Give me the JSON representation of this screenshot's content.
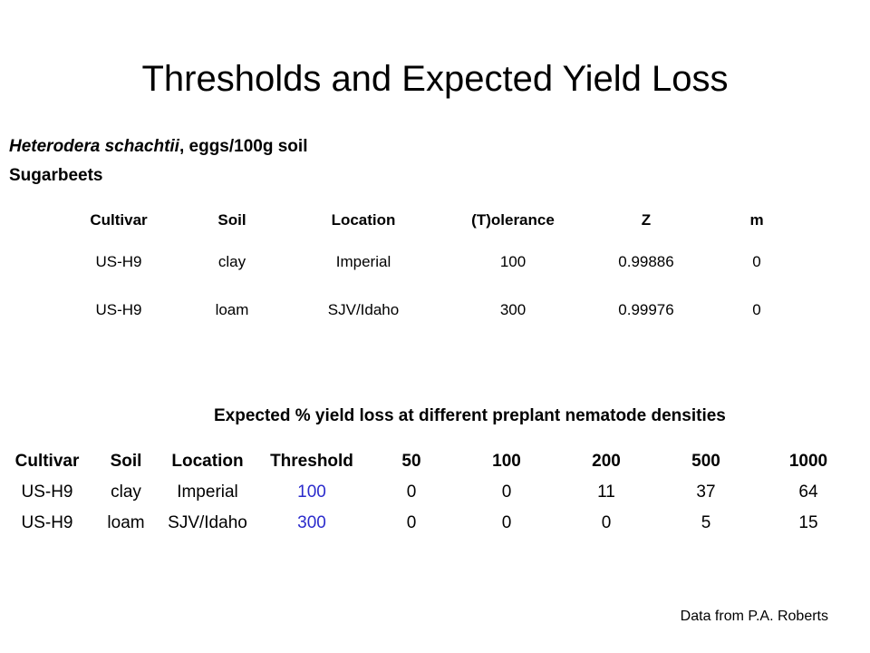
{
  "title": "Thresholds and Expected Yield Loss",
  "subtitle_species": "Heterodera schachtii",
  "subtitle_units": ", eggs/100g soil",
  "crop": "Sugarbeets",
  "table1": {
    "headers": [
      "Cultivar",
      "Soil",
      "Location",
      "(T)olerance",
      "Z",
      "m"
    ],
    "rows": [
      [
        "US-H9",
        "clay",
        "Imperial",
        "100",
        "0.99886",
        "0"
      ],
      [
        "US-H9",
        "loam",
        "SJV/Idaho",
        "300",
        "0.99976",
        "0"
      ]
    ]
  },
  "table2": {
    "caption": "Expected % yield loss at different preplant nematode densities",
    "headers": [
      "Cultivar",
      "Soil",
      "Location",
      "Threshold",
      "50",
      "100",
      "200",
      "500",
      "1000"
    ],
    "rows": [
      [
        "US-H9",
        "clay",
        "Imperial",
        "100",
        "0",
        "0",
        "11",
        "37",
        "64"
      ],
      [
        "US-H9",
        "loam",
        "SJV/Idaho",
        "300",
        "0",
        "0",
        "0",
        "5",
        "15"
      ]
    ],
    "threshold_color": "#2b2bcc"
  },
  "footer": "Data from P.A. Roberts"
}
